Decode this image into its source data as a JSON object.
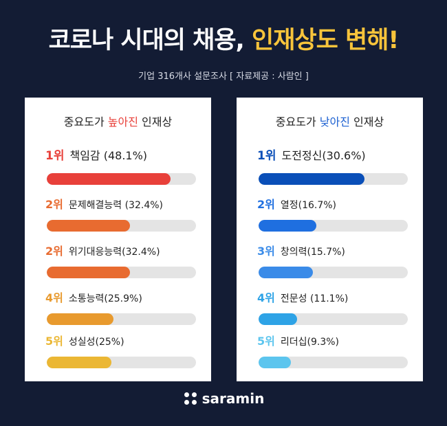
{
  "header": {
    "title_main": "코로나 시대의 채용,",
    "title_highlight": "인재상도 변해!",
    "subtitle": "기업 316개사 설문조사 [ 자료제공 : 사람인 ]"
  },
  "colors": {
    "background": "#131c34",
    "highlight_yellow": "#f8c43b",
    "highlight_red": "#e8403a",
    "highlight_blue": "#1a5fd1",
    "bar_track": "#e4e4e4"
  },
  "chart_data": [
    {
      "type": "bar",
      "title_prefix": "중요도가",
      "title_highlight": "높아진",
      "title_suffix": "인재상",
      "items": [
        {
          "rank": "1위",
          "label": "책임감 (48.1%)",
          "value": 48.1,
          "color": "#e8403a"
        },
        {
          "rank": "2위",
          "label": "문제해결능력 (32.4%)",
          "value": 32.4,
          "color": "#e86b30"
        },
        {
          "rank": "2위",
          "label": "위기대응능력(32.4%)",
          "value": 32.4,
          "color": "#e86b30"
        },
        {
          "rank": "4위",
          "label": "소통능력(25.9%)",
          "value": 25.9,
          "color": "#e89a2e"
        },
        {
          "rank": "5위",
          "label": "성실성(25%)",
          "value": 25,
          "color": "#ebb734"
        }
      ],
      "xlim": [
        0,
        58
      ]
    },
    {
      "type": "bar",
      "title_prefix": "중요도가",
      "title_highlight": "낮아진",
      "title_suffix": "인재상",
      "items": [
        {
          "rank": "1위",
          "label": "도전정신(30.6%)",
          "value": 30.6,
          "color": "#0a4fb8"
        },
        {
          "rank": "2위",
          "label": "열정(16.7%)",
          "value": 16.7,
          "color": "#1f6fe0"
        },
        {
          "rank": "3위",
          "label": "창의력(15.7%)",
          "value": 15.7,
          "color": "#3a8be8"
        },
        {
          "rank": "4위",
          "label": "전문성 (11.1%)",
          "value": 11.1,
          "color": "#2ea3e6"
        },
        {
          "rank": "5위",
          "label": "리더십(9.3%)",
          "value": 9.3,
          "color": "#5cc5ee"
        }
      ],
      "xlim": [
        0,
        43
      ]
    }
  ],
  "footer": {
    "logo_text": "saramin"
  }
}
